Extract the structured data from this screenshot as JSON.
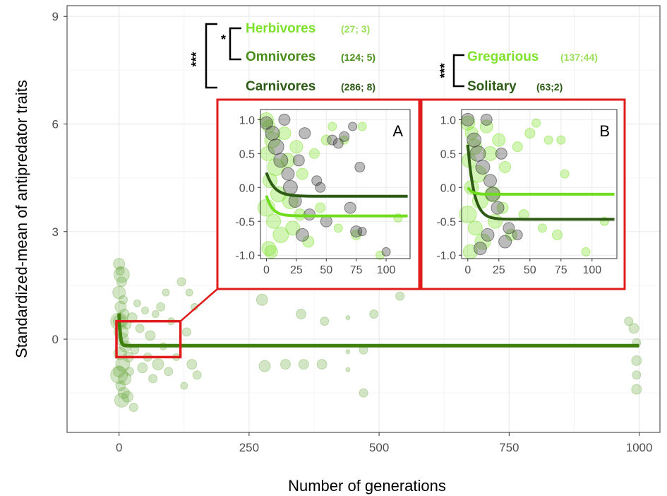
{
  "chart_data": [
    {
      "id": "main",
      "type": "scatter",
      "xlabel": "Number of generations",
      "ylabel": "Standardized-mean of antipredator traits",
      "xlim": [
        -100,
        1040
      ],
      "ylim": [
        -2.6,
        9.3
      ],
      "xticks": [
        "0",
        "250",
        "500",
        "750",
        "1000"
      ],
      "yticks": [
        "0",
        "3",
        "6",
        "9"
      ],
      "grid": true,
      "fit_series": {
        "level": -0.18,
        "start": 0.9,
        "rate": 0.45,
        "x_end": 1000,
        "color": "#3f7f0e"
      },
      "points": [
        [
          0,
          2.1,
          8
        ],
        [
          2,
          1.9,
          6
        ],
        [
          5,
          1.6,
          7
        ],
        [
          0,
          1.3,
          9
        ],
        [
          8,
          1.1,
          6
        ],
        [
          3,
          0.9,
          8
        ],
        [
          10,
          0.7,
          7
        ],
        [
          1,
          0.5,
          9
        ],
        [
          15,
          0.4,
          6
        ],
        [
          4,
          0.2,
          10
        ],
        [
          6,
          0.0,
          9
        ],
        [
          12,
          -0.2,
          8
        ],
        [
          2,
          -0.4,
          9
        ],
        [
          18,
          -0.5,
          7
        ],
        [
          7,
          -0.7,
          10
        ],
        [
          0,
          -0.9,
          8
        ],
        [
          11,
          -1.1,
          9
        ],
        [
          3,
          -1.3,
          7
        ],
        [
          9,
          -1.5,
          8
        ],
        [
          5,
          -1.7,
          10
        ],
        [
          20,
          -0.9,
          6
        ],
        [
          25,
          0.6,
          7
        ],
        [
          30,
          -0.3,
          6
        ],
        [
          35,
          1.0,
          5
        ],
        [
          40,
          0.3,
          6
        ],
        [
          45,
          -0.8,
          7
        ],
        [
          50,
          0.8,
          5
        ],
        [
          55,
          -0.5,
          6
        ],
        [
          60,
          0.1,
          7
        ],
        [
          65,
          -1.1,
          6
        ],
        [
          70,
          0.7,
          5
        ],
        [
          75,
          -0.7,
          8
        ],
        [
          80,
          0.9,
          6
        ],
        [
          85,
          -0.2,
          5
        ],
        [
          90,
          1.3,
          5
        ],
        [
          95,
          -0.9,
          6
        ],
        [
          100,
          0.5,
          5
        ],
        [
          110,
          -0.5,
          5
        ],
        [
          120,
          1.6,
          6
        ],
        [
          125,
          -1.3,
          5
        ],
        [
          130,
          0.2,
          6
        ],
        [
          135,
          1.3,
          5
        ],
        [
          140,
          -0.7,
          7
        ],
        [
          145,
          0.9,
          5
        ],
        [
          150,
          -1.0,
          6
        ],
        [
          28,
          -1.9,
          6
        ],
        [
          16,
          -1.6,
          8
        ],
        [
          0,
          -1.0,
          12
        ],
        [
          0,
          0.5,
          12
        ],
        [
          5,
          1.8,
          11
        ],
        [
          275,
          1.1,
          8
        ],
        [
          280,
          -0.75,
          8
        ],
        [
          320,
          -0.7,
          7
        ],
        [
          350,
          0.7,
          7
        ],
        [
          355,
          -0.7,
          7
        ],
        [
          390,
          -0.7,
          7
        ],
        [
          395,
          0.5,
          6
        ],
        [
          440,
          0.6,
          3
        ],
        [
          440,
          -0.35,
          3
        ],
        [
          440,
          -0.85,
          3
        ],
        [
          470,
          -0.3,
          6
        ],
        [
          470,
          -1.5,
          6
        ],
        [
          490,
          0.7,
          6
        ],
        [
          540,
          1.2,
          6
        ],
        [
          980,
          0.5,
          6
        ],
        [
          990,
          0.3,
          7
        ],
        [
          995,
          -0.1,
          6
        ],
        [
          995,
          -0.6,
          7
        ],
        [
          995,
          -1.0,
          6
        ],
        [
          995,
          -1.4,
          7
        ]
      ],
      "highlight_box": {
        "x": [
          -5,
          118
        ],
        "y": [
          -0.5,
          0.5
        ],
        "color": "#e01b1b"
      }
    },
    {
      "id": "A",
      "type": "scatter",
      "panel_label": "A",
      "xlim": [
        -5,
        120
      ],
      "ylim": [
        -1.05,
        1.15
      ],
      "xticks": [
        "0",
        "25",
        "50",
        "75",
        "100"
      ],
      "yticks": [
        "1.0",
        "0.5",
        "0.0",
        "-0.5",
        "-1.0"
      ],
      "series": [
        {
          "level": -0.13,
          "start": 0.35,
          "rate": 0.15,
          "color": "#2d5a14"
        },
        {
          "level": -0.42,
          "start": 0.3,
          "rate": 0.2,
          "color": "#6fdc1e"
        }
      ],
      "points_light": [
        [
          0,
          1.0,
          10
        ],
        [
          2,
          0.9,
          9
        ],
        [
          5,
          0.7,
          11
        ],
        [
          1,
          0.5,
          10
        ],
        [
          8,
          0.3,
          12
        ],
        [
          3,
          0.1,
          10
        ],
        [
          10,
          -0.1,
          11
        ],
        [
          0,
          -0.3,
          12
        ],
        [
          6,
          -0.5,
          10
        ],
        [
          12,
          -0.7,
          11
        ],
        [
          2,
          -0.9,
          10
        ],
        [
          15,
          0.8,
          9
        ],
        [
          18,
          0.4,
          10
        ],
        [
          20,
          -0.2,
          11
        ],
        [
          22,
          -0.6,
          10
        ],
        [
          25,
          0.6,
          9
        ],
        [
          28,
          -0.4,
          8
        ],
        [
          30,
          0.2,
          8
        ],
        [
          35,
          -0.8,
          8
        ],
        [
          40,
          0.5,
          7
        ],
        [
          45,
          -0.3,
          7
        ],
        [
          50,
          0.7,
          7
        ],
        [
          55,
          0.9,
          6
        ],
        [
          60,
          -0.6,
          6
        ],
        [
          65,
          0.7,
          6
        ],
        [
          75,
          -0.7,
          7
        ],
        [
          80,
          0.9,
          6
        ],
        [
          95,
          -1.0,
          6
        ],
        [
          110,
          -0.45,
          6
        ],
        [
          4,
          -0.95,
          9
        ]
      ],
      "points_dark": [
        [
          0,
          0.95,
          9
        ],
        [
          5,
          0.8,
          10
        ],
        [
          8,
          0.6,
          11
        ],
        [
          12,
          0.4,
          10
        ],
        [
          15,
          1.0,
          8
        ],
        [
          18,
          0.2,
          9
        ],
        [
          20,
          0.0,
          10
        ],
        [
          24,
          -0.2,
          9
        ],
        [
          27,
          0.4,
          8
        ],
        [
          30,
          -0.7,
          9
        ],
        [
          32,
          0.8,
          8
        ],
        [
          36,
          -0.4,
          8
        ],
        [
          42,
          0.1,
          7
        ],
        [
          50,
          -0.5,
          8
        ],
        [
          55,
          0.7,
          7
        ],
        [
          60,
          0.65,
          7
        ],
        [
          65,
          0.75,
          7
        ],
        [
          70,
          -0.3,
          8
        ],
        [
          72,
          0.9,
          6
        ],
        [
          75,
          -0.65,
          8
        ],
        [
          78,
          0.3,
          7
        ],
        [
          80,
          -0.65,
          6
        ],
        [
          45,
          0.0,
          7
        ],
        [
          100,
          -0.95,
          6
        ]
      ]
    },
    {
      "id": "B",
      "type": "scatter",
      "panel_label": "B",
      "xlim": [
        -5,
        120
      ],
      "ylim": [
        -1.05,
        1.15
      ],
      "xticks": [
        "0",
        "25",
        "50",
        "75",
        "100"
      ],
      "yticks": [
        "1.0",
        "0.5",
        "0.0",
        "-0.5",
        "-1.0"
      ],
      "series": [
        {
          "level": -0.47,
          "start": 1.1,
          "rate": 0.2,
          "color": "#2d5a14"
        },
        {
          "level": -0.1,
          "start": 0.1,
          "rate": 0.3,
          "color": "#6fdc1e"
        }
      ],
      "points_light": [
        [
          0,
          0.95,
          10
        ],
        [
          3,
          0.8,
          9
        ],
        [
          5,
          0.6,
          11
        ],
        [
          1,
          0.4,
          10
        ],
        [
          8,
          0.2,
          12
        ],
        [
          3,
          0.0,
          10
        ],
        [
          10,
          -0.2,
          11
        ],
        [
          0,
          -0.4,
          12
        ],
        [
          6,
          -0.6,
          10
        ],
        [
          12,
          -0.8,
          11
        ],
        [
          2,
          -0.95,
          10
        ],
        [
          15,
          0.9,
          9
        ],
        [
          18,
          0.5,
          10
        ],
        [
          20,
          -0.1,
          11
        ],
        [
          22,
          -0.5,
          10
        ],
        [
          25,
          0.7,
          9
        ],
        [
          28,
          -0.3,
          8
        ],
        [
          30,
          0.3,
          8
        ],
        [
          35,
          -0.7,
          8
        ],
        [
          40,
          0.6,
          7
        ],
        [
          45,
          -0.4,
          7
        ],
        [
          50,
          0.8,
          7
        ],
        [
          55,
          0.95,
          6
        ],
        [
          60,
          -0.6,
          6
        ],
        [
          65,
          0.7,
          6
        ],
        [
          72,
          -0.7,
          7
        ],
        [
          78,
          0.2,
          6
        ],
        [
          95,
          -0.95,
          6
        ],
        [
          110,
          -0.5,
          6
        ],
        [
          75,
          0.7,
          6
        ]
      ],
      "points_dark": [
        [
          0,
          1.0,
          9
        ],
        [
          5,
          0.7,
          10
        ],
        [
          8,
          0.5,
          11
        ],
        [
          12,
          0.3,
          10
        ],
        [
          15,
          1.0,
          8
        ],
        [
          18,
          0.1,
          9
        ],
        [
          20,
          -0.1,
          10
        ],
        [
          24,
          -0.3,
          9
        ],
        [
          27,
          0.5,
          8
        ],
        [
          30,
          -0.8,
          9
        ],
        [
          33,
          -0.6,
          8
        ],
        [
          10,
          -0.9,
          9
        ],
        [
          16,
          -0.7,
          9
        ],
        [
          40,
          -0.7,
          7
        ]
      ]
    }
  ],
  "legend": {
    "diet": [
      {
        "label": "Herbivores",
        "n": "(27; 3)",
        "color": "#7ee12b",
        "n_color": "#9be05a"
      },
      {
        "label": "Omnivores",
        "n": "(124; 5)",
        "color": "#4a8e1a",
        "n_color": "#4a8e1a"
      },
      {
        "label": "Carnivores",
        "n": "(286; 8)",
        "color": "#2d5a14",
        "n_color": "#2d5a14"
      }
    ],
    "diet_sig_inner": "*",
    "diet_sig_outer": "***",
    "social": [
      {
        "label": "Gregarious",
        "n": "(137;44)",
        "color": "#7ee12b",
        "n_color": "#9be05a"
      },
      {
        "label": "Solitary",
        "n": "(63;2)",
        "color": "#2d5a14",
        "n_color": "#2d5a14"
      }
    ],
    "social_sig": "***"
  },
  "colors": {
    "point_main": "#6aa83e",
    "point_light": "#7ee12b",
    "point_dark": "#3d3d3d",
    "grid": "#ebebeb",
    "frame": "#333333",
    "inset_border": "#e01b1b"
  }
}
